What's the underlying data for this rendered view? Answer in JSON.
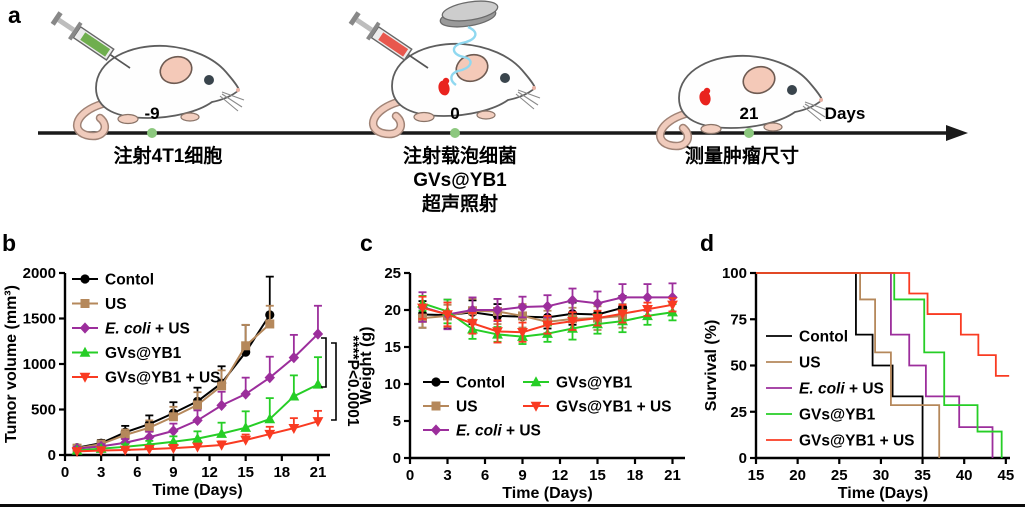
{
  "panel_labels": {
    "a": "a",
    "b": "b",
    "c": "c",
    "d": "d"
  },
  "panel_a": {
    "axis_label": "Days",
    "dot_color": "#8CC87E",
    "events": [
      {
        "day": "-9",
        "caption": "注射4T1细胞"
      },
      {
        "day": "0",
        "caption_lines": [
          "注射载泡细菌",
          "GVs@YB1",
          "超声照射"
        ]
      },
      {
        "day": "21",
        "caption": "测量肿瘤尺寸"
      }
    ]
  },
  "chart_data": [
    {
      "id": "b",
      "type": "line",
      "title": "",
      "xlabel": "Time (Days)",
      "ylabel": "Tumor volume (mm³)",
      "xlim": [
        0,
        22
      ],
      "ylim": [
        0,
        2000
      ],
      "xticks": [
        0,
        3,
        6,
        9,
        12,
        15,
        18,
        21
      ],
      "yticks": [
        0,
        500,
        1000,
        1500,
        2000
      ],
      "grid": false,
      "error_bars": "up",
      "legend_position": "top-left",
      "series": [
        {
          "name": "Contol",
          "color": "#000000",
          "marker": "circle",
          "x": [
            1,
            3,
            5,
            7,
            9,
            11,
            13,
            15,
            17
          ],
          "y": [
            80,
            130,
            250,
            340,
            460,
            590,
            790,
            1130,
            1540
          ],
          "err": [
            25,
            35,
            70,
            95,
            120,
            150,
            185,
            300,
            420
          ]
        },
        {
          "name": "US",
          "color": "#B5885B",
          "marker": "square",
          "x": [
            1,
            3,
            5,
            7,
            9,
            11,
            13,
            15,
            17
          ],
          "y": [
            75,
            120,
            220,
            300,
            420,
            550,
            760,
            1200,
            1440
          ],
          "err": [
            20,
            30,
            60,
            80,
            110,
            140,
            170,
            230,
            200
          ]
        },
        {
          "name": "E. coli + US",
          "italic_prefix": "E. coli",
          "color": "#9C2E9C",
          "marker": "diamond",
          "x": [
            1,
            3,
            5,
            7,
            9,
            11,
            13,
            15,
            17,
            19,
            21
          ],
          "y": [
            70,
            95,
            135,
            195,
            265,
            380,
            545,
            670,
            850,
            1070,
            1330
          ],
          "err": [
            18,
            25,
            40,
            60,
            80,
            110,
            150,
            180,
            230,
            250,
            310
          ]
        },
        {
          "name": "GVs@YB1",
          "color": "#26CE26",
          "marker": "triangle-up",
          "x": [
            1,
            3,
            5,
            7,
            9,
            11,
            13,
            15,
            17,
            19,
            21
          ],
          "y": [
            50,
            70,
            90,
            115,
            145,
            180,
            235,
            300,
            395,
            645,
            775
          ],
          "err": [
            15,
            18,
            28,
            40,
            60,
            80,
            120,
            180,
            230,
            230,
            300
          ]
        },
        {
          "name": "GVs@YB1 + US",
          "color": "#F93B22",
          "marker": "triangle-down",
          "x": [
            1,
            3,
            5,
            7,
            9,
            11,
            13,
            15,
            17,
            19,
            21
          ],
          "y": [
            40,
            50,
            55,
            65,
            75,
            90,
            110,
            165,
            230,
            295,
            370
          ],
          "err": [
            10,
            12,
            15,
            18,
            22,
            28,
            40,
            60,
            80,
            110,
            115
          ]
        }
      ],
      "annotation": {
        "text": "****P<0.0001",
        "compares": [
          "E. coli + US vs GVs@YB1",
          "E. coli + US vs GVs@YB1 + US"
        ]
      }
    },
    {
      "id": "c",
      "type": "line",
      "title": "",
      "xlabel": "Time (Days)",
      "ylabel": "Weight (g)",
      "xlim": [
        0,
        22
      ],
      "ylim": [
        0,
        25
      ],
      "xticks": [
        0,
        3,
        6,
        9,
        12,
        15,
        18,
        21
      ],
      "yticks": [
        0,
        5,
        10,
        15,
        20,
        25
      ],
      "grid": false,
      "error_bars": "both",
      "legend_position": "bottom-left-2col",
      "series": [
        {
          "name": "Contol",
          "color": "#000000",
          "marker": "circle",
          "x": [
            1,
            3,
            5,
            7,
            9,
            11,
            13,
            15,
            17
          ],
          "y": [
            19.4,
            19.3,
            19.7,
            19.2,
            19.1,
            19.0,
            19.5,
            19.4,
            20.3
          ],
          "err": [
            1.8,
            1.7,
            1.6,
            1.6,
            1.5,
            1.5,
            1.5,
            1.5,
            1.6
          ]
        },
        {
          "name": "US",
          "color": "#B5885B",
          "marker": "square",
          "x": [
            1,
            3,
            5,
            7,
            9,
            11,
            13,
            15,
            17
          ],
          "y": [
            18.9,
            19.2,
            19.9,
            19.8,
            19.2,
            18.4,
            18.8,
            18.9,
            19.2
          ],
          "err": [
            1.3,
            1.5,
            1.6,
            1.7,
            1.6,
            1.5,
            1.5,
            1.6,
            1.6
          ]
        },
        {
          "name": "E. coli + US",
          "italic_prefix": "E. coli",
          "color": "#9C2E9C",
          "marker": "diamond",
          "x": [
            1,
            3,
            5,
            7,
            9,
            11,
            13,
            15,
            17,
            19,
            21
          ],
          "y": [
            20.4,
            19.4,
            20.0,
            20.0,
            20.4,
            20.5,
            21.3,
            20.9,
            21.7,
            21.7,
            21.7
          ],
          "err": [
            2.0,
            2.0,
            1.7,
            1.5,
            1.4,
            1.5,
            1.6,
            1.6,
            1.8,
            1.8,
            1.9
          ]
        },
        {
          "name": "GVs@YB1",
          "color": "#26CE26",
          "marker": "triangle-up",
          "x": [
            1,
            3,
            5,
            7,
            9,
            11,
            13,
            15,
            17,
            19,
            21
          ],
          "y": [
            20.9,
            19.8,
            17.4,
            16.7,
            16.4,
            16.8,
            17.5,
            18.1,
            18.5,
            19.2,
            19.7
          ],
          "err": [
            1.0,
            1.6,
            1.3,
            1.0,
            1.0,
            1.1,
            1.5,
            1.3,
            1.5,
            1.2,
            1.1
          ]
        },
        {
          "name": "GVs@YB1 + US",
          "color": "#F93B22",
          "marker": "triangle-down",
          "x": [
            1,
            3,
            5,
            7,
            9,
            11,
            13,
            15,
            17,
            19,
            21
          ],
          "y": [
            20.3,
            19.4,
            18.2,
            17.1,
            17.0,
            18.0,
            18.5,
            18.9,
            19.5,
            20.1,
            20.7
          ],
          "err": [
            1.5,
            1.6,
            1.4,
            1.5,
            1.3,
            1.2,
            1.2,
            1.0,
            1.2,
            0.9,
            0.9
          ]
        }
      ]
    },
    {
      "id": "d",
      "type": "step",
      "title": "",
      "xlabel": "Time (Days)",
      "ylabel": "Survival (%)",
      "xlim": [
        15,
        45.5
      ],
      "ylim": [
        0,
        100
      ],
      "xticks": [
        15,
        20,
        25,
        30,
        35,
        40,
        45
      ],
      "yticks": [
        0,
        25,
        50,
        75,
        100
      ],
      "grid": false,
      "legend_position": "middle-left",
      "series": [
        {
          "name": "Contol",
          "color": "#000000",
          "steps": [
            [
              27,
              66.7
            ],
            [
              29,
              50
            ],
            [
              31.4,
              33.3
            ],
            [
              35,
              0
            ]
          ]
        },
        {
          "name": "US",
          "color": "#B5885B",
          "steps": [
            [
              27.5,
              85.7
            ],
            [
              29.3,
              57.1
            ],
            [
              31.2,
              28.6
            ],
            [
              37,
              0
            ]
          ]
        },
        {
          "name": "E. coli + US",
          "italic_prefix": "E. coli",
          "color": "#9C2E9C",
          "steps": [
            [
              31.2,
              66.7
            ],
            [
              33.4,
              50
            ],
            [
              35.4,
              33.3
            ],
            [
              39.4,
              16.7
            ],
            [
              43.4,
              0
            ]
          ]
        },
        {
          "name": "GVs@YB1",
          "color": "#26CE26",
          "steps": [
            [
              31.6,
              85.7
            ],
            [
              35.2,
              57.1
            ],
            [
              37.6,
              28.6
            ],
            [
              41.6,
              14.3
            ],
            [
              44.5,
              0
            ]
          ]
        },
        {
          "name": "GVs@YB1 + US",
          "color": "#F93B22",
          "steps": [
            [
              33.4,
              88.9
            ],
            [
              35.6,
              77.8
            ],
            [
              39.6,
              66.7
            ],
            [
              41.7,
              55.6
            ],
            [
              43.8,
              44.4
            ]
          ],
          "extend_to": 45.4
        }
      ]
    }
  ]
}
